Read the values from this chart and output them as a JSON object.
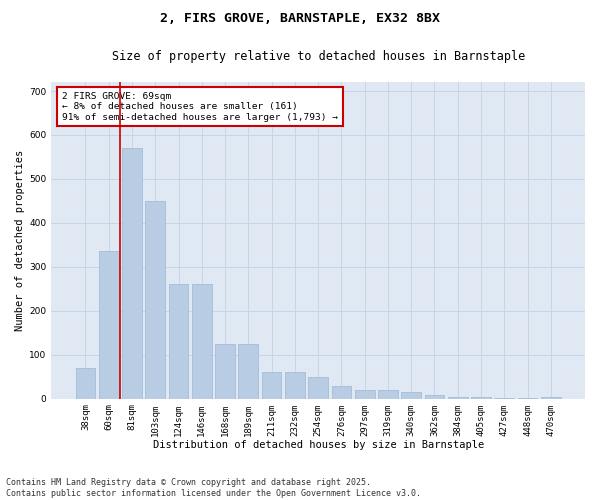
{
  "title1": "2, FIRS GROVE, BARNSTAPLE, EX32 8BX",
  "title2": "Size of property relative to detached houses in Barnstaple",
  "xlabel": "Distribution of detached houses by size in Barnstaple",
  "ylabel": "Number of detached properties",
  "categories": [
    "38sqm",
    "60sqm",
    "81sqm",
    "103sqm",
    "124sqm",
    "146sqm",
    "168sqm",
    "189sqm",
    "211sqm",
    "232sqm",
    "254sqm",
    "276sqm",
    "297sqm",
    "319sqm",
    "340sqm",
    "362sqm",
    "384sqm",
    "405sqm",
    "427sqm",
    "448sqm",
    "470sqm"
  ],
  "values": [
    70,
    335,
    570,
    450,
    260,
    260,
    125,
    125,
    60,
    60,
    50,
    30,
    20,
    20,
    15,
    8,
    5,
    5,
    1,
    1,
    5
  ],
  "bar_color": "#b8cce4",
  "bar_edge_color": "#9db8d2",
  "bar_width": 0.85,
  "vline_color": "#cc0000",
  "annotation_text": "2 FIRS GROVE: 69sqm\n← 8% of detached houses are smaller (161)\n91% of semi-detached houses are larger (1,793) →",
  "annotation_box_color": "white",
  "annotation_box_edge": "#cc0000",
  "ylim": [
    0,
    720
  ],
  "yticks": [
    0,
    100,
    200,
    300,
    400,
    500,
    600,
    700
  ],
  "grid_color": "#c8d4e8",
  "bg_color": "#e0e8f4",
  "footer": "Contains HM Land Registry data © Crown copyright and database right 2025.\nContains public sector information licensed under the Open Government Licence v3.0.",
  "title_fontsize": 9.5,
  "subtitle_fontsize": 8.5,
  "axis_label_fontsize": 7.5,
  "tick_fontsize": 6.5,
  "annotation_fontsize": 6.8,
  "footer_fontsize": 6.0
}
